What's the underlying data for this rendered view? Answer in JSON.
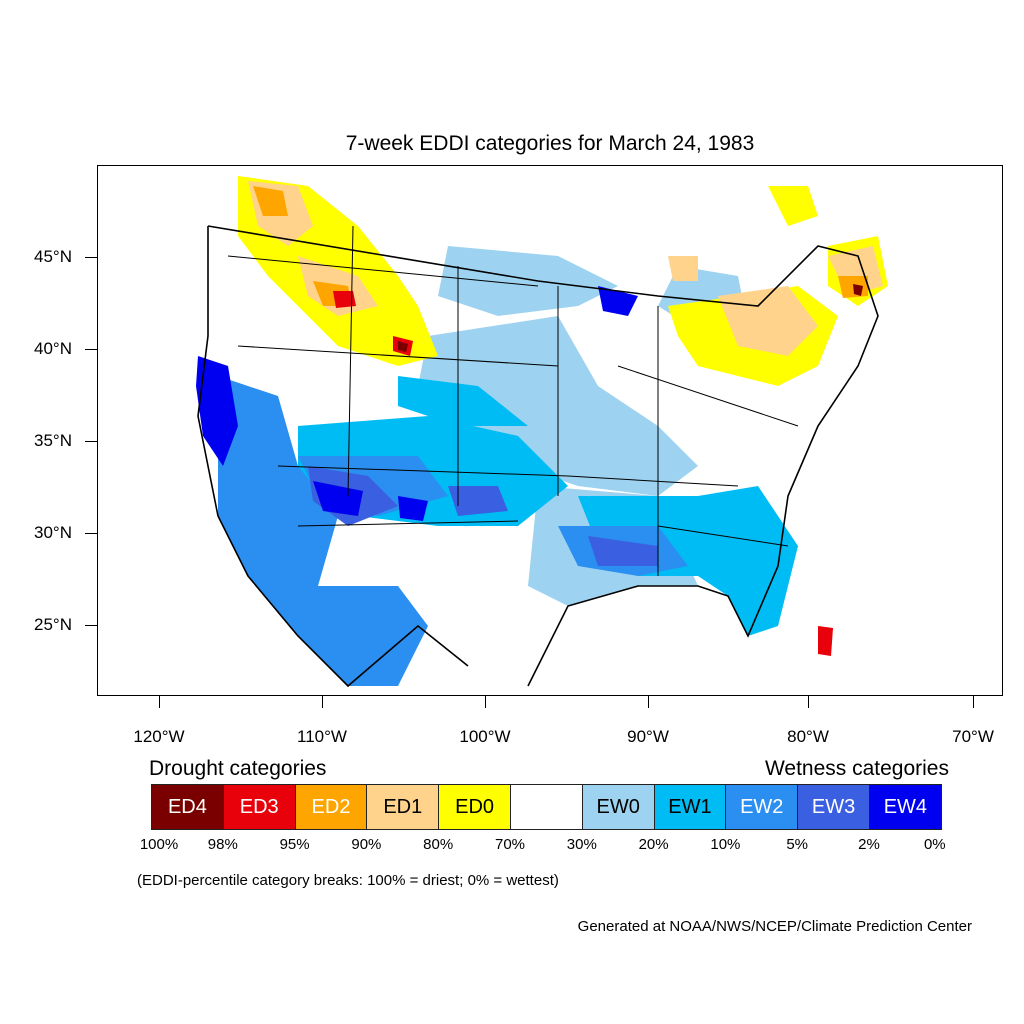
{
  "map": {
    "title": "7-week EDDI categories for March 24, 1983",
    "lat_labels": [
      "45°N",
      "40°N",
      "35°N",
      "30°N",
      "25°N"
    ],
    "lon_labels": [
      "120°W",
      "110°W",
      "100°W",
      "90°W",
      "80°W",
      "70°W"
    ],
    "lat_values": [
      45,
      40,
      35,
      30,
      25
    ],
    "lon_values": [
      -120,
      -110,
      -100,
      -90,
      -80,
      -70
    ],
    "region": "contiguous United States"
  },
  "legend": {
    "drought_heading": "Drought categories",
    "wetness_heading": "Wetness categories",
    "categories": [
      {
        "label": "ED4",
        "color": "#7a0000",
        "text_color": "#ffffff"
      },
      {
        "label": "ED3",
        "color": "#e8000b",
        "text_color": "#ffffff"
      },
      {
        "label": "ED2",
        "color": "#ffa500",
        "text_color": "#ffffff"
      },
      {
        "label": "ED1",
        "color": "#ffd38c",
        "text_color": "#000000"
      },
      {
        "label": "ED0",
        "color": "#ffff00",
        "text_color": "#000000"
      },
      {
        "label": "",
        "color": "#ffffff",
        "text_color": "#000000"
      },
      {
        "label": "EW0",
        "color": "#9dd3f0",
        "text_color": "#000000"
      },
      {
        "label": "EW1",
        "color": "#00bcf5",
        "text_color": "#000000"
      },
      {
        "label": "EW2",
        "color": "#2a8ff0",
        "text_color": "#ffffff"
      },
      {
        "label": "EW3",
        "color": "#3a5fe0",
        "text_color": "#ffffff"
      },
      {
        "label": "EW4",
        "color": "#0000f0",
        "text_color": "#ffffff"
      }
    ],
    "percentile_breaks": [
      "100%",
      "98%",
      "95%",
      "90%",
      "80%",
      "70%",
      "30%",
      "20%",
      "10%",
      "5%",
      "2%",
      "0%"
    ],
    "note": "(EDDI-percentile category breaks: 100% = driest; 0% = wettest)"
  },
  "credit": "Generated at NOAA/NWS/NCEP/Climate Prediction Center"
}
